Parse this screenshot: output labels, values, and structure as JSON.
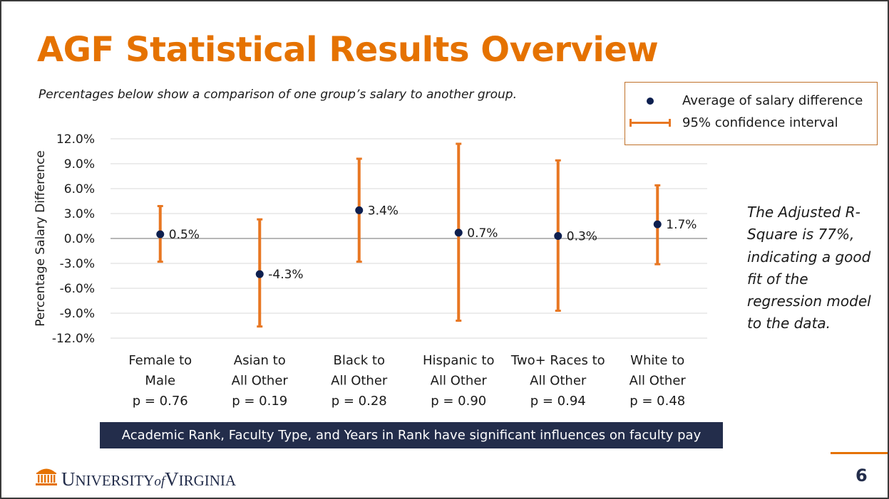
{
  "slide": {
    "title": "AGF Statistical Results Overview",
    "subtitle": "Percentages below show a comparison of one group’s salary to another group.",
    "note": "The Adjusted R-Square is 77%, indicating a good fit of the regression model to the data.",
    "banner": "Academic Rank, Faculty Type, and Years in Rank have significant influences on faculty pay",
    "page_number": "6"
  },
  "legend": {
    "dot_label": "Average of salary difference",
    "ci_label": "95% confidence interval"
  },
  "logo": {
    "u": "U",
    "niversity": "NIVERSITY",
    "of": "of",
    "v": "V",
    "irginia": "IRGINIA"
  },
  "colors": {
    "title": "#e57200",
    "error_bar": "#e87722",
    "point": "#0d1f4f",
    "banner": "#232d4b"
  },
  "chart_data": {
    "type": "scatter",
    "ylabel": "Percentage Salary Difference",
    "ylim": [
      -12,
      12
    ],
    "y_ticks": [
      "12.0%",
      "9.0%",
      "6.0%",
      "3.0%",
      "0.0%",
      "-3.0%",
      "-6.0%",
      "-9.0%",
      "-12.0%"
    ],
    "y_tick_values": [
      12,
      9,
      6,
      3,
      0,
      -3,
      -6,
      -9,
      -12
    ],
    "grid": true,
    "categories": [
      [
        "Female to",
        "Male",
        "p = 0.76"
      ],
      [
        "Asian to",
        "All Other",
        "p = 0.19"
      ],
      [
        "Black to",
        "All Other",
        "p = 0.28"
      ],
      [
        "Hispanic to",
        "All Other",
        "p = 0.90"
      ],
      [
        "Two+ Races to",
        "All Other",
        "p = 0.94"
      ],
      [
        "White to",
        "All Other",
        "p = 0.48"
      ]
    ],
    "series": [
      {
        "name": "Average of salary difference",
        "values": [
          0.5,
          -4.3,
          3.4,
          0.7,
          0.3,
          1.7
        ],
        "labels": [
          "0.5%",
          "-4.3%",
          "3.4%",
          "0.7%",
          "0.3%",
          "1.7%"
        ]
      },
      {
        "name": "95% confidence interval",
        "lower": [
          -2.8,
          -10.6,
          -2.8,
          -9.9,
          -8.7,
          -3.1
        ],
        "upper": [
          3.9,
          2.3,
          9.6,
          11.4,
          9.4,
          6.4
        ]
      }
    ]
  }
}
